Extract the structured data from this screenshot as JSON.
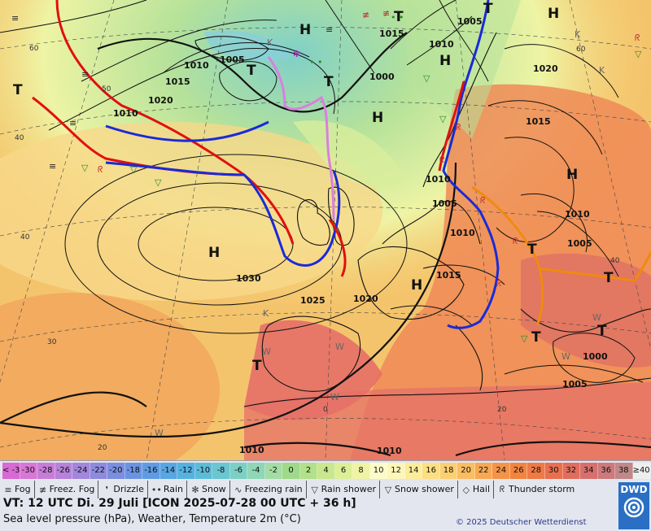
{
  "map": {
    "pressure_centers": [
      {
        "type": "H",
        "label": "H"
      },
      {
        "type": "H",
        "label": "H"
      },
      {
        "type": "H",
        "label": "H"
      },
      {
        "type": "H",
        "label": "H"
      },
      {
        "type": "H",
        "label": "H"
      },
      {
        "type": "H",
        "label": "H"
      },
      {
        "type": "H",
        "label": "H"
      },
      {
        "type": "T",
        "label": "T"
      },
      {
        "type": "T",
        "label": "T"
      },
      {
        "type": "T",
        "label": "T"
      },
      {
        "type": "T",
        "label": "T"
      },
      {
        "type": "T",
        "label": "T"
      },
      {
        "type": "T",
        "label": "T"
      },
      {
        "type": "T",
        "label": "T"
      },
      {
        "type": "T",
        "label": "T"
      },
      {
        "type": "T",
        "label": "T"
      },
      {
        "type": "T",
        "label": "T"
      }
    ],
    "isobar_labels": [
      "1010",
      "1015",
      "1020",
      "1010",
      "1005",
      "1000",
      "1015",
      "1010",
      "1005",
      "1020",
      "1015",
      "1030",
      "1025",
      "1020",
      "1015",
      "1010",
      "1005",
      "1010",
      "1005",
      "1010",
      "1000",
      "1005",
      "1010",
      "1010"
    ],
    "latlon_labels": [
      "60",
      "50",
      "40",
      "40",
      "30",
      "20",
      "0",
      "20",
      "60",
      "40"
    ],
    "k_w_marks": [
      "K",
      "K",
      "K",
      "K",
      "W",
      "W",
      "W",
      "W",
      "W",
      "W"
    ]
  },
  "scale": {
    "entries": [
      "< -30",
      "-30",
      "-28",
      "-26",
      "-24",
      "-22",
      "-20",
      "-18",
      "-16",
      "-14",
      "-12",
      "-10",
      "-8",
      "-6",
      "-4",
      "-2",
      "0",
      "2",
      "4",
      "6",
      "8",
      "10",
      "12",
      "14",
      "16",
      "18",
      "20",
      "22",
      "24",
      "26",
      "28",
      "30",
      "32",
      "34",
      "36",
      "38",
      "≥40 °C"
    ],
    "colors": [
      "#d86ad4",
      "#d777d6",
      "#c77dd8",
      "#b682da",
      "#a286dc",
      "#8e8ade",
      "#7a8ee0",
      "#6a93e2",
      "#5f9be3",
      "#58a6e3",
      "#55b1e0",
      "#5cbcd8",
      "#6ac6d0",
      "#7ccfc4",
      "#8fd6b6",
      "#a4dca6",
      "#9fd98a",
      "#b3e08a",
      "#c9e88e",
      "#ddef96",
      "#eef4a4",
      "#fbfbc8",
      "#fdf6b8",
      "#fdec9a",
      "#fddf82",
      "#fccf72",
      "#fbbd62",
      "#f8a853",
      "#f59448",
      "#f2843f",
      "#ef7a45",
      "#e96f4f",
      "#e06d5d",
      "#d7706d",
      "#cc7a7c",
      "#c08888",
      "#eeeeee"
    ]
  },
  "legend": [
    {
      "icon": "fog-icon",
      "glyph": "≡",
      "label": "Fog"
    },
    {
      "icon": "freezing-fog-icon",
      "glyph": "≢",
      "label": "Freez. Fog"
    },
    {
      "icon": "drizzle-icon",
      "glyph": "❜",
      "label": "Drizzle"
    },
    {
      "icon": "rain-icon",
      "glyph": "••",
      "label": "Rain"
    },
    {
      "icon": "snow-icon",
      "glyph": "✻",
      "label": "Snow"
    },
    {
      "icon": "freezing-rain-icon",
      "glyph": "∿",
      "label": "Freezing rain"
    },
    {
      "icon": "rain-shower-icon",
      "glyph": "▽",
      "label": "Rain shower"
    },
    {
      "icon": "snow-shower-icon",
      "glyph": "▽",
      "label": "Snow shower"
    },
    {
      "icon": "hail-icon",
      "glyph": "◇",
      "label": "Hail"
    },
    {
      "icon": "thunderstorm-icon",
      "glyph": "ᖇ",
      "label": "Thunder storm"
    }
  ],
  "footer": {
    "valid_time": "VT: 12 UTC Di.  29 Juli [ICON 2025-07-28  00 UTC + 36 h]",
    "subtitle": "Sea level pressure (hPa), Weather, Temperature 2m (°C)",
    "copyright": "© 2025 Deutscher Wetterdienst",
    "logo_text": "DWD"
  },
  "colors": {
    "warm_front": "#e01010",
    "cold_front": "#1a2ad8",
    "occluded_front": "#d880e0",
    "trough": "#f08a10",
    "isobar": "#000000",
    "sea_warm": "#f2a35a",
    "sea_mid": "#f6d27a",
    "land_hot": "#e57068",
    "north_cool": "#a8dc96",
    "panel_bg": "#e4e6ef"
  }
}
